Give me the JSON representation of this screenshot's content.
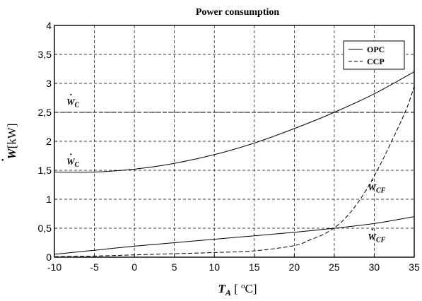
{
  "chart_data": {
    "type": "line",
    "title": "Power consumption",
    "xlabel": {
      "symbol": "T",
      "sub": "A",
      "unit_pre": " [ ",
      "deg": "o",
      "unit_post": "C]"
    },
    "ylabel": {
      "symbol": "W",
      "unit": "[kW]"
    },
    "xlim": [
      -10,
      35
    ],
    "ylim": [
      0,
      4
    ],
    "xticks": [
      "-10",
      "-5",
      "0",
      "5",
      "10",
      "15",
      "20",
      "25",
      "30",
      "35"
    ],
    "yticks": [
      "0",
      "0,5",
      "1",
      "1,5",
      "2",
      "2,5",
      "3",
      "3,5",
      "4"
    ],
    "grid": true,
    "legend": {
      "placement": "top-right",
      "entries": [
        {
          "label": "OPC",
          "style": "solid"
        },
        {
          "label": "CCP",
          "style": "dashed"
        }
      ]
    },
    "series": [
      {
        "name": "OPC",
        "style": "solid",
        "x": [
          -10,
          -5,
          0,
          5,
          10,
          15,
          20,
          25,
          30,
          35
        ],
        "y": [
          1.47,
          1.47,
          1.52,
          1.62,
          1.77,
          1.97,
          2.22,
          2.5,
          2.82,
          3.2
        ]
      },
      {
        "name": "OPC",
        "style": "solid",
        "x": [
          -10,
          -5,
          0,
          5,
          10,
          15,
          20,
          25,
          30,
          35
        ],
        "y": [
          0.05,
          0.12,
          0.19,
          0.25,
          0.31,
          0.37,
          0.43,
          0.5,
          0.58,
          0.7
        ]
      },
      {
        "name": "CCP",
        "style": "dashed",
        "x": [
          -10,
          -5,
          0,
          5,
          10,
          15,
          20,
          22,
          24,
          26,
          28,
          30,
          32,
          34,
          35
        ],
        "y": [
          0.01,
          0.02,
          0.04,
          0.06,
          0.08,
          0.11,
          0.2,
          0.3,
          0.42,
          0.62,
          0.95,
          1.4,
          1.95,
          2.55,
          2.95
        ]
      },
      {
        "name": "CCP",
        "style": "dashed",
        "x": [
          -10,
          35
        ],
        "y": [
          2.5,
          2.5
        ]
      }
    ],
    "annotations": [
      {
        "text": "W",
        "sub": "C",
        "x": -8.5,
        "y": 2.63
      },
      {
        "text": "W",
        "sub": "C",
        "x": -8.5,
        "y": 1.6
      },
      {
        "text": "W",
        "sub": "CF",
        "x": 29.2,
        "y": 1.15
      },
      {
        "text": "W",
        "sub": "CF",
        "x": 29.2,
        "y": 0.3
      }
    ]
  }
}
